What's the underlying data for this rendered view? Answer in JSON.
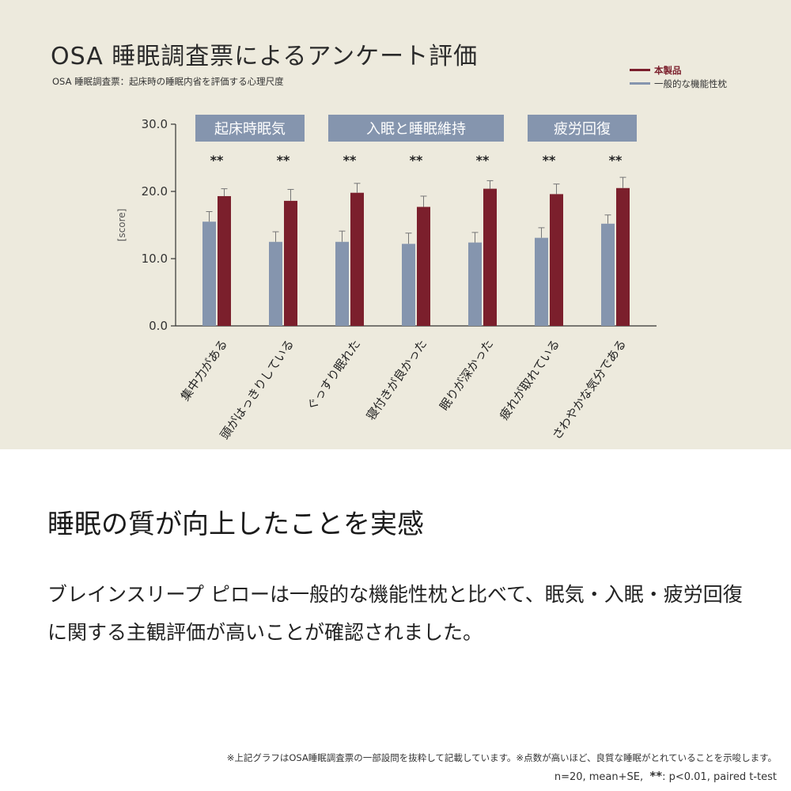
{
  "chart_data": {
    "type": "bar",
    "title": "OSA 睡眠調査票によるアンケート評価",
    "subtitle": "OSA 睡眠調査票：起床時の睡眠内省を評価する心理尺度",
    "ylabel": "[score]",
    "ylim": [
      0,
      30
    ],
    "yticks": [
      "0.0",
      "10.0",
      "20.0",
      "30.0"
    ],
    "grid": false,
    "legend_position": "top-right",
    "categories": [
      "集中力がある",
      "頭がはっきりしている",
      "ぐっすり眠れた",
      "寝付きが良かった",
      "眠りが深かった",
      "疲れが取れている",
      "さわやかな気分である"
    ],
    "series": [
      {
        "name": "一般的な機能性枕",
        "color": "#8595ae",
        "values": [
          15.5,
          12.5,
          12.5,
          12.2,
          12.4,
          13.1,
          15.2
        ],
        "errors": [
          1.5,
          1.5,
          1.6,
          1.6,
          1.5,
          1.5,
          1.3
        ]
      },
      {
        "name": "本製品",
        "color": "#7b1f2c",
        "values": [
          19.3,
          18.6,
          19.8,
          17.7,
          20.4,
          19.6,
          20.5
        ],
        "errors": [
          1.1,
          1.7,
          1.4,
          1.6,
          1.2,
          1.5,
          1.6
        ]
      }
    ],
    "significance": [
      "**",
      "**",
      "**",
      "**",
      "**",
      "**",
      "**"
    ],
    "groups": [
      {
        "label": "起床時眠気",
        "start": 0,
        "end": 1
      },
      {
        "label": "入眠と睡眠維持",
        "start": 2,
        "end": 4
      },
      {
        "label": "疲労回復",
        "start": 5,
        "end": 6
      }
    ]
  },
  "legend": [
    {
      "label": "本製品",
      "color": "#7b1f2c"
    },
    {
      "label": "一般的な機能性枕",
      "color": "#8595ae"
    }
  ],
  "headline": "睡眠の質が向上したことを実感",
  "body": "ブレインスリープ ピローは一般的な機能性枕と比べて、眠気・入眠・疲労回復に関する主観評価が高いことが確認されました。",
  "footnote": "※上記グラフはOSA睡眠調査票の一部設問を抜粋して記載しています。※点数が高いほど、良質な睡眠がとれていることを示唆します。",
  "footnote_stats_prefix": "n=20, mean+SE,",
  "footnote_stars": "**",
  "footnote_stats_suffix": ": p<0.01, paired t-test",
  "colors": {
    "panel": "#edeadd",
    "group_box": "#8595ae",
    "axis": "#333333"
  }
}
